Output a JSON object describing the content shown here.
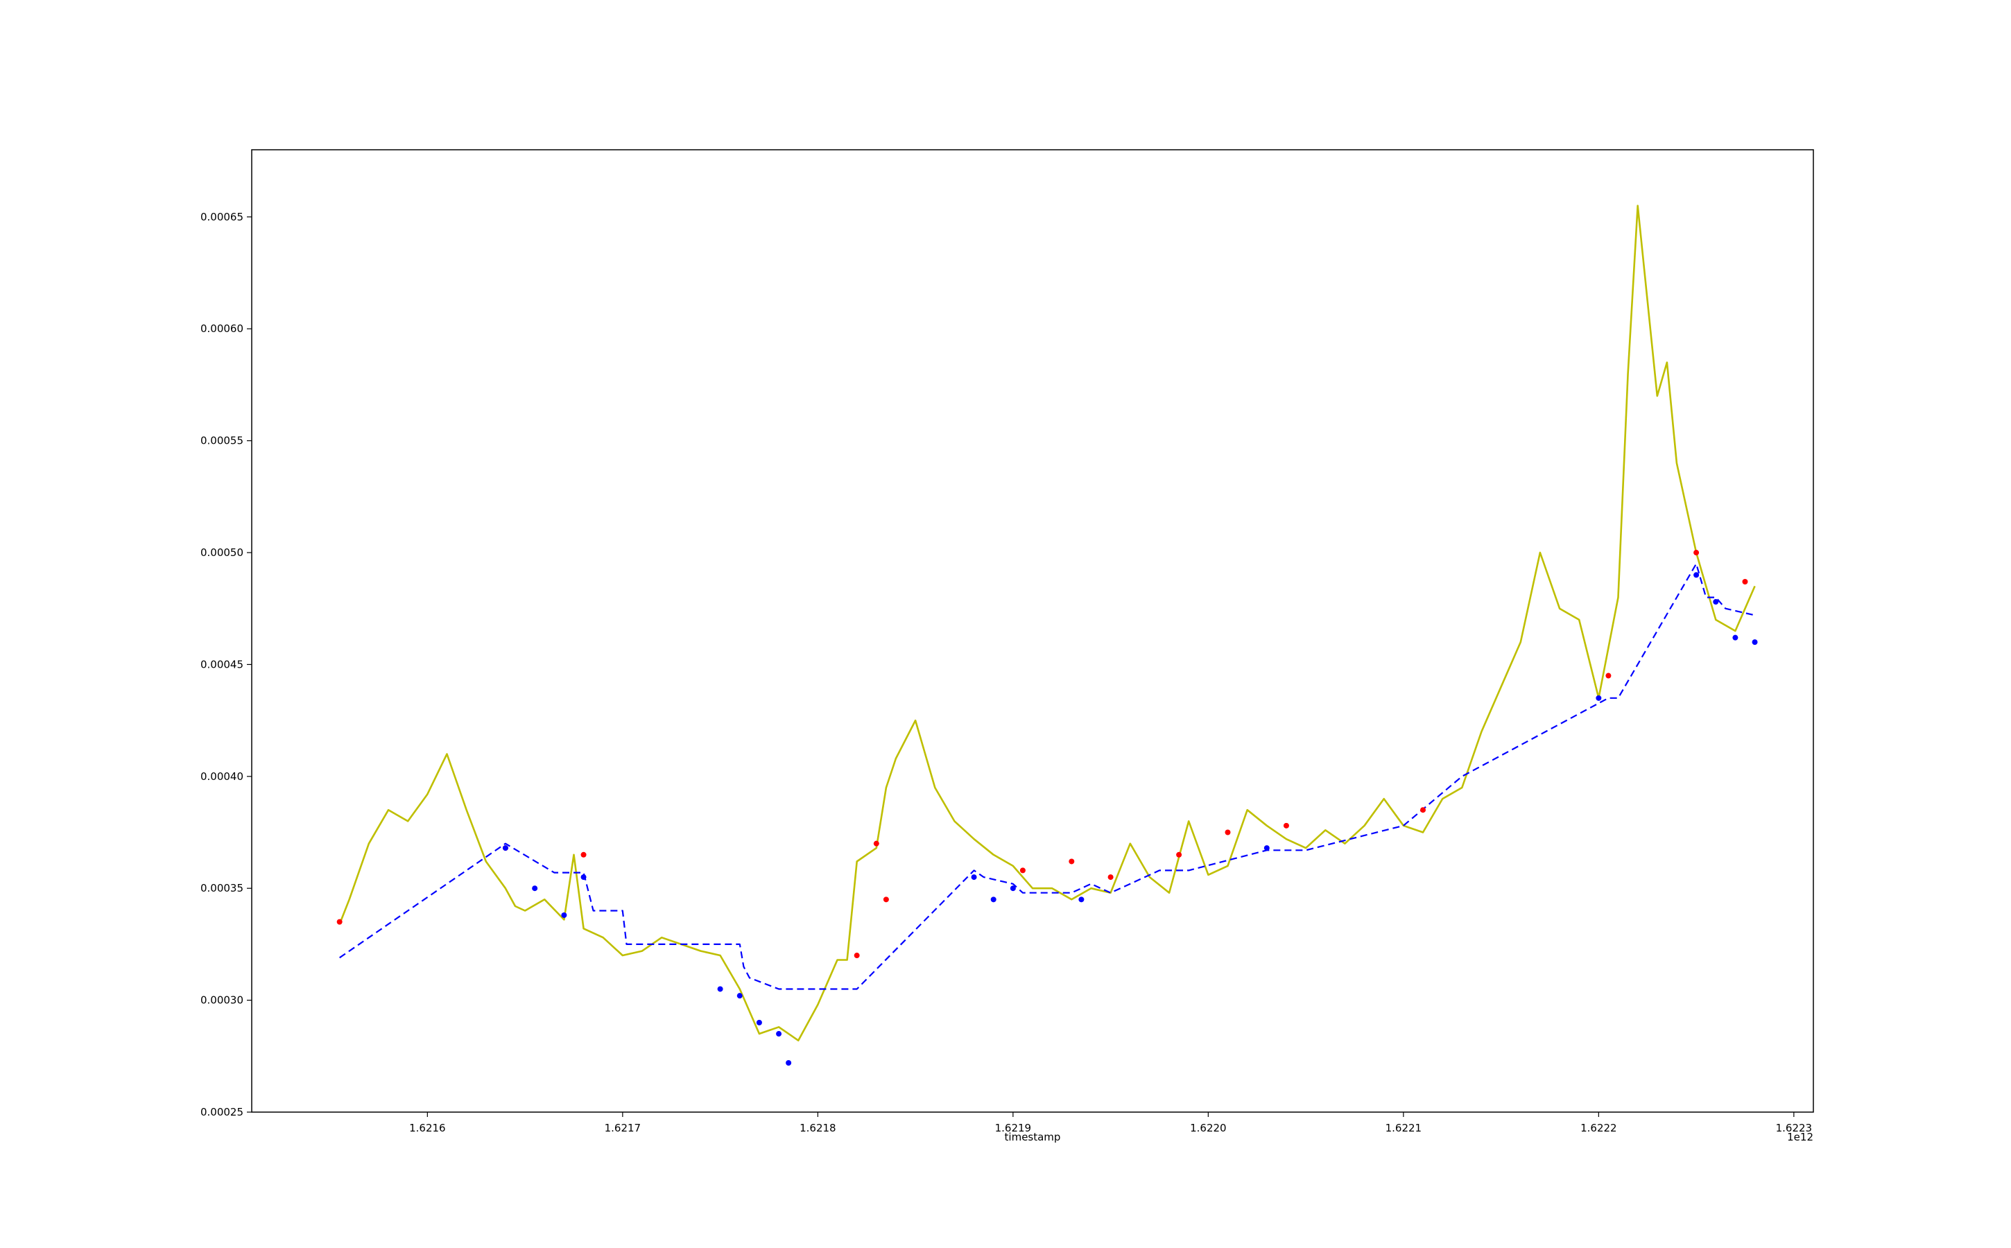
{
  "chart_data": {
    "type": "line",
    "title": "",
    "xlabel": "timestamp",
    "ylabel": "",
    "x_offset_label": "1e12",
    "xlim": [
      1.62151,
      1.62231
    ],
    "ylim": [
      0.00025,
      0.00068
    ],
    "grid": false,
    "x_ticks": [
      1.6216,
      1.6217,
      1.6218,
      1.6219,
      1.622,
      1.6221,
      1.6222,
      1.6223
    ],
    "x_tick_labels": [
      "1.6216",
      "1.6217",
      "1.6218",
      "1.6219",
      "1.6220",
      "1.6221",
      "1.6222",
      "1.6223"
    ],
    "y_ticks": [
      0.00025,
      0.0003,
      0.00035,
      0.0004,
      0.00045,
      0.0005,
      0.00055,
      0.0006,
      0.00065
    ],
    "y_tick_labels": [
      "0.00025",
      "0.00030",
      "0.00035",
      "0.00040",
      "0.00045",
      "0.00050",
      "0.00055",
      "0.00060",
      "0.00065"
    ],
    "series": [
      {
        "style": "solid",
        "color": "#bfbf00",
        "x": [
          1.621555,
          1.62156,
          1.62157,
          1.62158,
          1.62159,
          1.6216,
          1.62161,
          1.62162,
          1.62163,
          1.62164,
          1.621645,
          1.62165,
          1.62166,
          1.62167,
          1.621675,
          1.62168,
          1.62169,
          1.6217,
          1.62171,
          1.62172,
          1.62173,
          1.62174,
          1.62175,
          1.62176,
          1.62177,
          1.62178,
          1.62179,
          1.6218,
          1.62181,
          1.621815,
          1.62182,
          1.62183,
          1.621835,
          1.62184,
          1.62185,
          1.62186,
          1.62187,
          1.62188,
          1.62189,
          1.6219,
          1.62191,
          1.62192,
          1.62193,
          1.62194,
          1.62195,
          1.62196,
          1.62197,
          1.62198,
          1.62199,
          1.622,
          1.62201,
          1.62202,
          1.62203,
          1.62204,
          1.62205,
          1.62206,
          1.62207,
          1.62208,
          1.62209,
          1.6221,
          1.62211,
          1.62212,
          1.62213,
          1.62214,
          1.62215,
          1.62216,
          1.62217,
          1.62218,
          1.62219,
          1.6222,
          1.62221,
          1.622215,
          1.62222,
          1.62223,
          1.622235,
          1.62224,
          1.62225,
          1.62226,
          1.62227,
          1.62228
        ],
        "y": [
          0.000334,
          0.000345,
          0.00037,
          0.000385,
          0.00038,
          0.000392,
          0.00041,
          0.000385,
          0.000362,
          0.00035,
          0.000342,
          0.00034,
          0.000345,
          0.000336,
          0.000365,
          0.000332,
          0.000328,
          0.00032,
          0.000322,
          0.000328,
          0.000325,
          0.000322,
          0.00032,
          0.000305,
          0.000285,
          0.000288,
          0.000282,
          0.000298,
          0.000318,
          0.000318,
          0.000362,
          0.000368,
          0.000395,
          0.000408,
          0.000425,
          0.000395,
          0.00038,
          0.000372,
          0.000365,
          0.00036,
          0.00035,
          0.00035,
          0.000345,
          0.00035,
          0.000348,
          0.00037,
          0.000355,
          0.000348,
          0.00038,
          0.000356,
          0.00036,
          0.000385,
          0.000378,
          0.000372,
          0.000368,
          0.000376,
          0.00037,
          0.000378,
          0.00039,
          0.000378,
          0.000375,
          0.00039,
          0.000395,
          0.00042,
          0.00044,
          0.00046,
          0.0005,
          0.000475,
          0.00047,
          0.000435,
          0.00048,
          0.00058,
          0.000655,
          0.00057,
          0.000585,
          0.00054,
          0.0005,
          0.00047,
          0.000465,
          0.000485
        ]
      },
      {
        "style": "dashed",
        "color": "#0000ff",
        "x": [
          1.621555,
          1.62164,
          1.621665,
          1.62168,
          1.621685,
          1.6217,
          1.621702,
          1.62176,
          1.621762,
          1.621765,
          1.62178,
          1.62182,
          1.62188,
          1.621885,
          1.6219,
          1.621905,
          1.62193,
          1.62194,
          1.62195,
          1.621975,
          1.62199,
          1.62203,
          1.62205,
          1.6221,
          1.62213,
          1.622205,
          1.62221,
          1.62225,
          1.622255,
          1.62226,
          1.622265,
          1.62228
        ],
        "y": [
          0.000319,
          0.00037,
          0.000357,
          0.000357,
          0.00034,
          0.00034,
          0.000325,
          0.000325,
          0.000315,
          0.00031,
          0.000305,
          0.000305,
          0.000358,
          0.000355,
          0.000352,
          0.000348,
          0.000348,
          0.000352,
          0.000348,
          0.000358,
          0.000358,
          0.000367,
          0.000367,
          0.000378,
          0.0004,
          0.000435,
          0.000435,
          0.000495,
          0.00048,
          0.00048,
          0.000475,
          0.000472
        ]
      }
    ],
    "markers": {
      "red": [
        [
          1.621555,
          0.000335
        ],
        [
          1.62164,
          0.000368
        ],
        [
          1.62168,
          0.000365
        ],
        [
          1.62182,
          0.00032
        ],
        [
          1.62183,
          0.00037
        ],
        [
          1.621835,
          0.000345
        ],
        [
          1.621905,
          0.000358
        ],
        [
          1.62193,
          0.000362
        ],
        [
          1.62195,
          0.000355
        ],
        [
          1.621985,
          0.000365
        ],
        [
          1.62201,
          0.000375
        ],
        [
          1.62204,
          0.000378
        ],
        [
          1.62211,
          0.000385
        ],
        [
          1.622205,
          0.000445
        ],
        [
          1.62225,
          0.0005
        ],
        [
          1.622275,
          0.000487
        ]
      ],
      "blue": [
        [
          1.62164,
          0.000368
        ],
        [
          1.621655,
          0.00035
        ],
        [
          1.62167,
          0.000338
        ],
        [
          1.62168,
          0.000355
        ],
        [
          1.62175,
          0.000305
        ],
        [
          1.62176,
          0.000302
        ],
        [
          1.62177,
          0.00029
        ],
        [
          1.62178,
          0.000285
        ],
        [
          1.621785,
          0.000272
        ],
        [
          1.62188,
          0.000355
        ],
        [
          1.62189,
          0.000345
        ],
        [
          1.6219,
          0.00035
        ],
        [
          1.621935,
          0.000345
        ],
        [
          1.62203,
          0.000368
        ],
        [
          1.6222,
          0.000435
        ],
        [
          1.62225,
          0.00049
        ],
        [
          1.62226,
          0.000478
        ],
        [
          1.62227,
          0.000462
        ],
        [
          1.62228,
          0.00046
        ]
      ]
    }
  }
}
